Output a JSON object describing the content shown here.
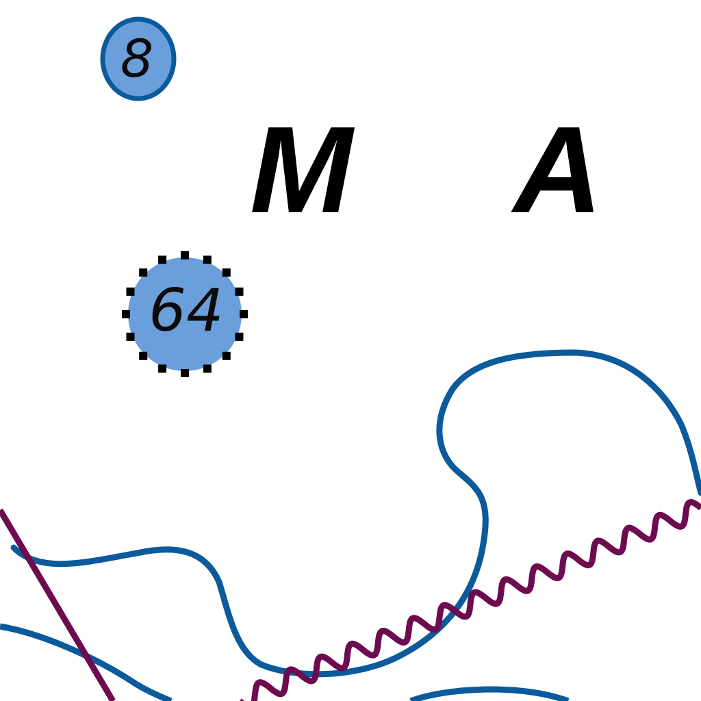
{
  "map": {
    "colors": {
      "background": "#ffffff",
      "depth_contour": "#0a5a9c",
      "shoal_fill": "#6a9fdc",
      "danger_dots": "#000000",
      "cable_line": "#6e0a4f",
      "label_text": "#000000"
    },
    "depth_soundings": [
      {
        "value": "8",
        "style": "shoal-outlined"
      },
      {
        "value": "64",
        "style": "obstruction-dotted"
      }
    ],
    "area_label_letters": [
      "M",
      "A"
    ],
    "features": [
      "depth-contour-line",
      "submarine-cable-line",
      "diagonal-boundary-line"
    ]
  }
}
